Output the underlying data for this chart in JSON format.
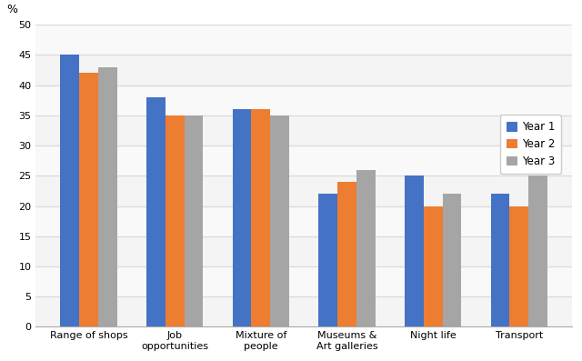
{
  "categories": [
    "Range of shops",
    "Job\nopportunities",
    "Mixture of\npeople",
    "Museums &\nArt galleries",
    "Night life",
    "Transport"
  ],
  "year1": [
    45,
    38,
    36,
    22,
    25,
    22
  ],
  "year2": [
    42,
    35,
    36,
    24,
    20,
    20
  ],
  "year3": [
    43,
    35,
    35,
    26,
    22,
    25
  ],
  "colors": {
    "year1": "#4472C4",
    "year2": "#ED7D31",
    "year3": "#A5A5A5"
  },
  "legend_labels": [
    "Year 1",
    "Year 2",
    "Year 3"
  ],
  "ylabel": "%",
  "ylim": [
    0,
    50
  ],
  "yticks": [
    0,
    5,
    10,
    15,
    20,
    25,
    30,
    35,
    40,
    45,
    50
  ],
  "bar_width": 0.22,
  "background_color": "#FFFFFF",
  "grid_color": "#D9D9D9",
  "title": ""
}
